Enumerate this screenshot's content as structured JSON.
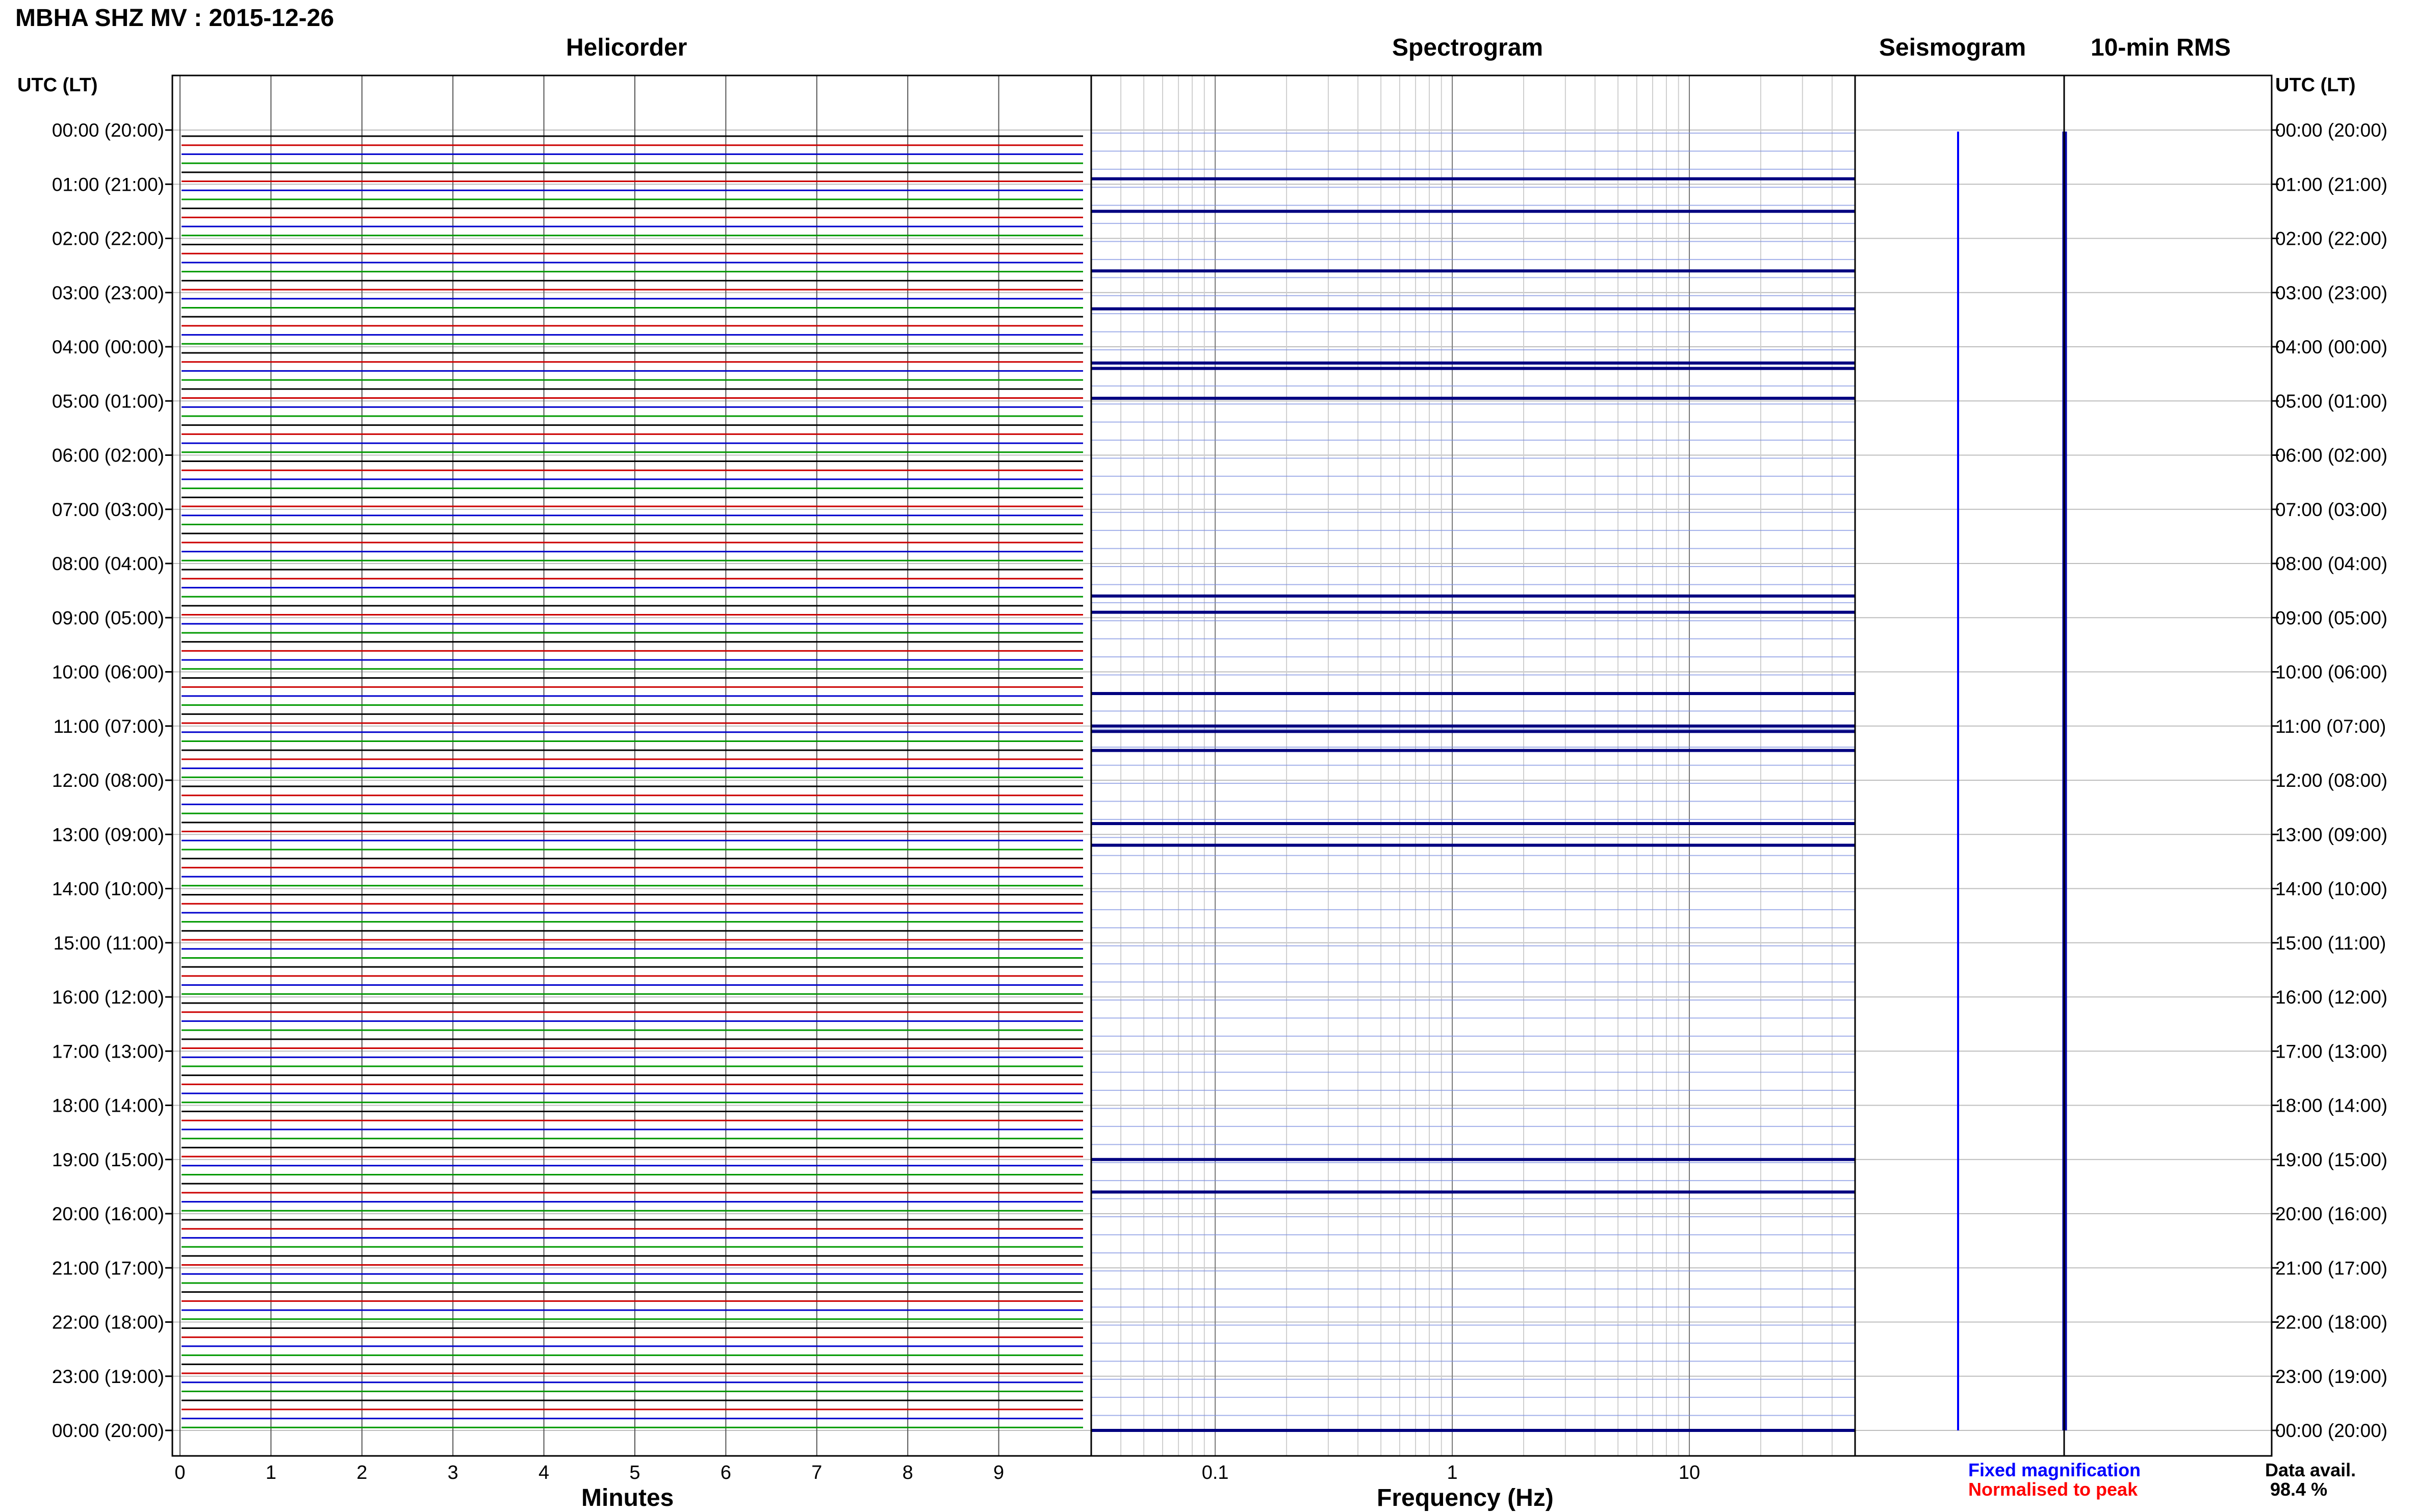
{
  "header": {
    "title": "MBHA SHZ MV : 2015-12-26"
  },
  "panels": {
    "helicorder": "Helicorder",
    "spectrogram": "Spectrogram",
    "seismogram": "Seismogram",
    "rms": "10-min RMS"
  },
  "axis_labels": {
    "left_header": "UTC (LT)",
    "right_header": "UTC (LT)",
    "minutes": "Minutes",
    "frequency": "Frequency (Hz)"
  },
  "legend": {
    "fixed": "Fixed magnification",
    "normalised": "Normalised to peak",
    "data_avail_label": "Data avail.",
    "data_avail_value": "98.4 %"
  },
  "colors": {
    "fixed": "#0000ff",
    "normalised": "#ff0000",
    "trace_cycle": [
      "#000000",
      "#cc0000",
      "#0000cc",
      "#009900"
    ],
    "spectro_line": "#000080",
    "grid": "#888888"
  },
  "chart_data": [
    {
      "type": "line",
      "title": "Helicorder",
      "xlabel": "Minutes",
      "xlim": [
        0,
        10
      ],
      "x_ticks": [
        "0",
        "1",
        "2",
        "3",
        "4",
        "5",
        "6",
        "7",
        "8",
        "9"
      ],
      "hour_labels": [
        "00:00 (20:00)",
        "01:00 (21:00)",
        "02:00 (22:00)",
        "03:00 (23:00)",
        "04:00 (00:00)",
        "05:00 (01:00)",
        "06:00 (02:00)",
        "07:00 (03:00)",
        "08:00 (04:00)",
        "09:00 (05:00)",
        "10:00 (06:00)",
        "11:00 (07:00)",
        "12:00 (08:00)",
        "13:00 (09:00)",
        "14:00 (10:00)",
        "15:00 (11:00)",
        "16:00 (12:00)",
        "17:00 (13:00)",
        "18:00 (14:00)",
        "19:00 (15:00)",
        "20:00 (16:00)",
        "21:00 (17:00)",
        "22:00 (18:00)",
        "23:00 (19:00)",
        "00:00 (20:00)"
      ]
    },
    {
      "type": "heatmap",
      "title": "Spectrogram",
      "xlabel": "Frequency (Hz)",
      "xscale": "log",
      "xlim": [
        0.03,
        50
      ],
      "x_ticks": [
        "0.1",
        "1",
        "10"
      ],
      "dark_band_hours": [
        0.9,
        1.5,
        2.6,
        3.3,
        4.3,
        4.4,
        4.95,
        8.6,
        8.9,
        10.4,
        11.0,
        11.1,
        11.45,
        12.8,
        13.2,
        19.0,
        19.6,
        24.0
      ]
    },
    {
      "type": "line",
      "title": "Seismogram"
    },
    {
      "type": "line",
      "title": "10-min RMS"
    }
  ]
}
